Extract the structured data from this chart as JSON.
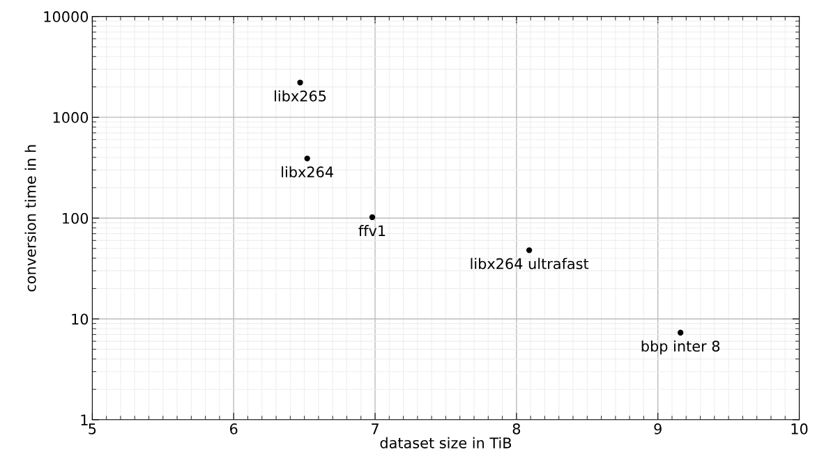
{
  "chart_data": {
    "type": "scatter",
    "xlabel": "dataset size in TiB",
    "ylabel": "conversion time in h",
    "x": [
      6.47,
      6.52,
      6.98,
      8.09,
      9.16
    ],
    "series": [
      {
        "color": "#000000",
        "values": [
          2210,
          390,
          102,
          48,
          7.3
        ]
      }
    ],
    "annotations": [
      {
        "text": "libx265",
        "x": 6.47,
        "y": 2210
      },
      {
        "text": "libx264",
        "x": 6.52,
        "y": 390
      },
      {
        "text": "ffv1",
        "x": 6.98,
        "y": 102
      },
      {
        "text": "libx264 ultrafast",
        "x": 8.09,
        "y": 48
      },
      {
        "text": "bbp inter 8",
        "x": 9.16,
        "y": 7.3
      }
    ],
    "xlim": [
      5,
      10
    ],
    "xticks": [
      5,
      6,
      7,
      8,
      9,
      10
    ],
    "ylim": [
      1,
      10000
    ],
    "yticks": [
      1,
      10,
      100,
      1000,
      10000
    ],
    "log": "y",
    "grid": true,
    "marker": "circle"
  }
}
